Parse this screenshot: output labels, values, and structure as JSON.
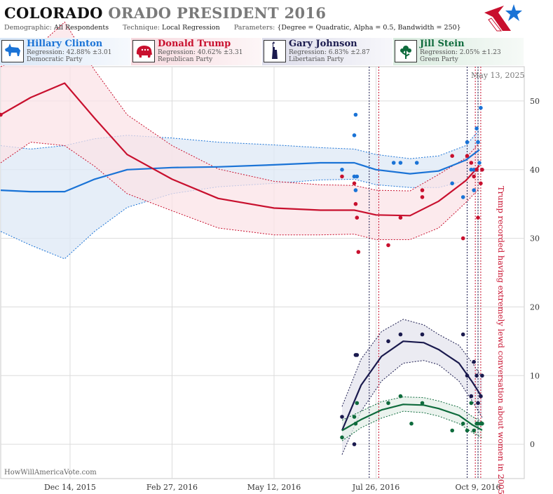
{
  "header": {
    "title_main": "COLORADO",
    "title_sub": "ORADO PRESIDENT 2016",
    "demographic_label": "Demographic:",
    "demographic_value": "All Respondents",
    "technique_label": "Technique:",
    "technique_value": "Local Regression",
    "parameters_label": "Parameters:",
    "parameters_value": "{Degree = Quadratic, Alpha = 0.5, Bandwidth = 250}"
  },
  "candidates": [
    {
      "name": "Hillary Clinton",
      "regression": "Regression: 42.88% ±3.01",
      "party": "Democratic Party",
      "color": "#1a73d6",
      "icon": "donkey-icon"
    },
    {
      "name": "Donald Trump",
      "regression": "Regression: 40.62% ±3.31",
      "party": "Republican Party",
      "color": "#c8102e",
      "icon": "elephant-icon"
    },
    {
      "name": "Gary Johnson",
      "regression": "Regression: 6.83% ±2.87",
      "party": "Libertarian Party",
      "color": "#1a1a4e",
      "icon": "statue-of-liberty-icon"
    },
    {
      "name": "Jill Stein",
      "regression": "Regression: 2.05% ±1.23",
      "party": "Green Party",
      "color": "#0e6b3c",
      "icon": "flower-icon"
    }
  ],
  "date_note": "May 13, 2025",
  "footer_note": "HowWillAmericaVote.com",
  "annotation": "Trump recorded having extremely lewd conversation about women in 2005",
  "chart_data": {
    "type": "line",
    "x_ticks": [
      "Dec 14, 2015",
      "Feb 27, 2016",
      "May 12, 2016",
      "Jul 26, 2016",
      "Oct 9, 2016"
    ],
    "y_ticks": [
      0,
      10,
      20,
      30,
      40,
      50
    ],
    "ylim": [
      -5,
      55
    ],
    "xlim": [
      "2015-10-24",
      "2016-11-12"
    ],
    "grid": true,
    "event_lines": [
      "2016-07-21",
      "2016-07-28",
      "2016-10-01",
      "2016-10-07",
      "2016-10-09",
      "2016-10-11"
    ],
    "series": [
      {
        "name": "Hillary Clinton",
        "color": "#1a73d6",
        "band_color": "#dde8f5",
        "x": [
          "2015-10-24",
          "2015-11-15",
          "2015-12-10",
          "2016-01-01",
          "2016-01-25",
          "2016-02-27",
          "2016-04-01",
          "2016-05-12",
          "2016-06-15",
          "2016-07-10",
          "2016-07-26",
          "2016-08-20",
          "2016-09-10",
          "2016-09-30",
          "2016-10-10"
        ],
        "values": [
          37,
          36.8,
          36.8,
          38.6,
          40.0,
          40.3,
          40.4,
          40.7,
          41.0,
          41.0,
          40.0,
          39.4,
          39.8,
          41.4,
          42.9
        ],
        "lower": [
          31,
          29,
          27,
          31,
          34.5,
          36.5,
          37.5,
          38.0,
          38.5,
          38.6,
          37.8,
          37.4,
          37.4,
          38.4,
          40.0
        ],
        "upper": [
          43.5,
          43,
          43.5,
          44.5,
          45.0,
          44.6,
          44.0,
          43.6,
          43.2,
          43.0,
          42.2,
          41.6,
          42.0,
          43.5,
          45.8
        ],
        "points": [
          [
            "2016-07-01",
            40
          ],
          [
            "2016-07-10",
            45
          ],
          [
            "2016-07-11",
            48
          ],
          [
            "2016-07-10",
            39
          ],
          [
            "2016-07-12",
            39
          ],
          [
            "2016-07-11",
            37
          ],
          [
            "2016-08-08",
            41
          ],
          [
            "2016-08-13",
            41
          ],
          [
            "2016-08-25",
            41
          ],
          [
            "2016-09-20",
            38
          ],
          [
            "2016-09-28",
            36
          ],
          [
            "2016-10-01",
            44
          ],
          [
            "2016-10-04",
            40
          ],
          [
            "2016-10-06",
            40
          ],
          [
            "2016-10-08",
            46
          ],
          [
            "2016-10-09",
            44
          ],
          [
            "2016-10-10",
            41
          ],
          [
            "2016-10-11",
            49
          ],
          [
            "2016-10-12",
            40
          ],
          [
            "2016-10-06",
            37
          ]
        ]
      },
      {
        "name": "Donald Trump",
        "color": "#c8102e",
        "band_color": "#fbe3e7",
        "x": [
          "2015-10-24",
          "2015-11-15",
          "2015-12-10",
          "2016-01-01",
          "2016-01-25",
          "2016-02-27",
          "2016-04-01",
          "2016-05-12",
          "2016-06-15",
          "2016-07-10",
          "2016-07-26",
          "2016-08-20",
          "2016-09-10",
          "2016-09-30",
          "2016-10-10"
        ],
        "values": [
          48,
          50.5,
          52.6,
          47.5,
          42.2,
          38.6,
          35.8,
          34.4,
          34.1,
          34.1,
          33.4,
          33.3,
          35.4,
          38.4,
          40.6
        ],
        "lower": [
          41,
          44,
          43.5,
          40.5,
          36.5,
          34.0,
          31.5,
          30.5,
          30.5,
          30.6,
          29.8,
          29.8,
          31.5,
          35.2,
          37.3
        ],
        "upper": [
          55,
          57,
          61.5,
          54.5,
          48.0,
          43.5,
          40.1,
          38.3,
          37.8,
          37.7,
          37.0,
          36.9,
          39.3,
          41.7,
          43.9
        ],
        "points": [
          [
            "2015-10-24",
            48
          ],
          [
            "2016-07-01",
            39
          ],
          [
            "2016-07-10",
            38
          ],
          [
            "2016-07-11",
            35
          ],
          [
            "2016-07-12",
            33
          ],
          [
            "2016-07-13",
            28
          ],
          [
            "2016-08-04",
            29
          ],
          [
            "2016-08-13",
            33
          ],
          [
            "2016-08-29",
            36
          ],
          [
            "2016-08-29",
            37
          ],
          [
            "2016-09-20",
            42
          ],
          [
            "2016-09-28",
            30
          ],
          [
            "2016-10-01",
            42
          ],
          [
            "2016-10-04",
            41
          ],
          [
            "2016-10-06",
            39
          ],
          [
            "2016-10-08",
            40
          ],
          [
            "2016-10-09",
            33
          ],
          [
            "2016-10-11",
            38
          ],
          [
            "2016-10-12",
            40
          ]
        ]
      },
      {
        "name": "Gary Johnson",
        "color": "#1a1a4e",
        "band_color": "#e4e4ee",
        "x": [
          "2016-07-01",
          "2016-07-15",
          "2016-07-30",
          "2016-08-15",
          "2016-08-30",
          "2016-09-10",
          "2016-09-25",
          "2016-10-05",
          "2016-10-12"
        ],
        "values": [
          2,
          8.6,
          12.8,
          15.0,
          14.8,
          13.8,
          11.8,
          9.0,
          6.8
        ],
        "lower": [
          -1.5,
          4.8,
          9.2,
          11.8,
          12.2,
          11.6,
          9.2,
          6.2,
          3.9
        ],
        "upper": [
          5.5,
          12.4,
          16.4,
          18.2,
          17.4,
          16.0,
          14.4,
          11.8,
          9.7
        ],
        "points": [
          [
            "2016-07-01",
            4
          ],
          [
            "2016-07-10",
            0
          ],
          [
            "2016-07-11",
            13
          ],
          [
            "2016-07-12",
            13
          ],
          [
            "2016-08-04",
            15
          ],
          [
            "2016-08-13",
            16
          ],
          [
            "2016-08-29",
            16
          ],
          [
            "2016-09-28",
            16
          ],
          [
            "2016-10-01",
            10
          ],
          [
            "2016-10-04",
            7
          ],
          [
            "2016-10-06",
            12
          ],
          [
            "2016-10-08",
            10
          ],
          [
            "2016-10-09",
            6
          ],
          [
            "2016-10-11",
            7
          ],
          [
            "2016-10-12",
            10
          ]
        ]
      },
      {
        "name": "Jill Stein",
        "color": "#0e6b3c",
        "band_color": "#e4efe8",
        "x": [
          "2016-07-01",
          "2016-07-15",
          "2016-07-30",
          "2016-08-15",
          "2016-08-30",
          "2016-09-10",
          "2016-09-25",
          "2016-10-05",
          "2016-10-12"
        ],
        "values": [
          2,
          3.6,
          5.0,
          5.8,
          5.7,
          5.2,
          4.2,
          2.8,
          2.05
        ],
        "lower": [
          0.5,
          2.4,
          3.8,
          4.8,
          4.6,
          4.1,
          3.0,
          1.7,
          0.9
        ],
        "upper": [
          3.5,
          4.8,
          6.2,
          6.9,
          6.8,
          6.3,
          5.4,
          4.0,
          3.3
        ],
        "points": [
          [
            "2016-07-01",
            1
          ],
          [
            "2016-07-10",
            4
          ],
          [
            "2016-07-11",
            3
          ],
          [
            "2016-07-12",
            6
          ],
          [
            "2016-08-04",
            6
          ],
          [
            "2016-08-13",
            7
          ],
          [
            "2016-08-21",
            3
          ],
          [
            "2016-08-29",
            6
          ],
          [
            "2016-09-20",
            2
          ],
          [
            "2016-09-28",
            3
          ],
          [
            "2016-10-01",
            2
          ],
          [
            "2016-10-04",
            6
          ],
          [
            "2016-10-06",
            2
          ],
          [
            "2016-10-08",
            3
          ],
          [
            "2016-10-09",
            3
          ],
          [
            "2016-10-11",
            3
          ],
          [
            "2016-10-12",
            3
          ]
        ]
      }
    ]
  }
}
